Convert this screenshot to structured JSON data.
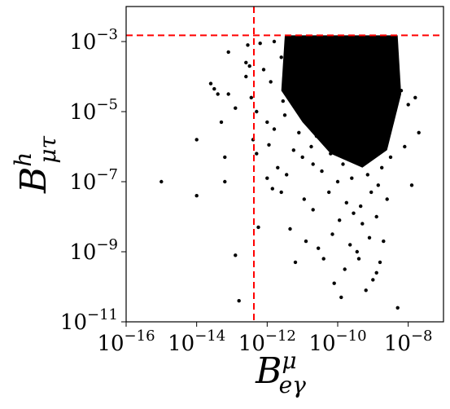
{
  "chart_data": {
    "type": "scatter",
    "title": "",
    "xscale": "log",
    "yscale": "log",
    "xlim": [
      1e-16,
      1e-07
    ],
    "ylim": [
      1e-11,
      0.01
    ],
    "xlabel": {
      "base": "B",
      "sup": "μ",
      "sub": "eγ"
    },
    "ylabel": {
      "base": "B",
      "sup": "h",
      "sub": "μτ"
    },
    "x_ticks": [
      {
        "value": 1e-16,
        "base": "10",
        "exp": "−16"
      },
      {
        "value": 1e-14,
        "base": "10",
        "exp": "−14"
      },
      {
        "value": 1e-12,
        "base": "10",
        "exp": "−12"
      },
      {
        "value": 1e-10,
        "base": "10",
        "exp": "−10"
      },
      {
        "value": 1e-08,
        "base": "10",
        "exp": "−8"
      }
    ],
    "y_ticks": [
      {
        "value": 1e-11,
        "base": "10",
        "exp": "−11"
      },
      {
        "value": 1e-09,
        "base": "10",
        "exp": "−9"
      },
      {
        "value": 1e-07,
        "base": "10",
        "exp": "−7"
      },
      {
        "value": 1e-05,
        "base": "10",
        "exp": "−5"
      },
      {
        "value": 0.001,
        "base": "10",
        "exp": "−3"
      }
    ],
    "reference_lines": [
      {
        "orientation": "vertical",
        "value": 4.2e-13,
        "color": "#ff0000",
        "style": "dashed"
      },
      {
        "orientation": "horizontal",
        "value": 0.0015,
        "color": "#ff0000",
        "style": "dashed"
      }
    ],
    "marker_color": "#000000",
    "grid": false,
    "points_log10": [
      [
        -15.0,
        -7.0
      ],
      [
        -14.0,
        -7.4
      ],
      [
        -14.0,
        -5.8
      ],
      [
        -13.6,
        -4.2
      ],
      [
        -13.5,
        -4.35
      ],
      [
        -13.4,
        -4.5
      ],
      [
        -13.3,
        -5.3
      ],
      [
        -13.2,
        -6.3
      ],
      [
        -13.2,
        -7.0
      ],
      [
        -13.1,
        -4.5
      ],
      [
        -13.1,
        -3.3
      ],
      [
        -12.9,
        -4.9
      ],
      [
        -12.9,
        -9.1
      ],
      [
        -12.8,
        -10.4
      ],
      [
        -12.6,
        -3.6
      ],
      [
        -12.55,
        -3.1
      ],
      [
        -12.5,
        -3.7
      ],
      [
        -12.45,
        -4.6
      ],
      [
        -12.4,
        -5.8
      ],
      [
        -12.3,
        -6.2
      ],
      [
        -12.25,
        -8.3
      ],
      [
        -12.2,
        -3.05
      ],
      [
        -12.1,
        -3.8
      ],
      [
        -12.0,
        -5.3
      ],
      [
        -11.95,
        -5.95
      ],
      [
        -11.9,
        -4.15
      ],
      [
        -11.85,
        -7.2
      ],
      [
        -11.8,
        -5.5
      ],
      [
        -11.7,
        -6.6
      ],
      [
        -11.6,
        -3.45
      ],
      [
        -11.55,
        -4.7
      ],
      [
        -11.5,
        -5.1
      ],
      [
        -11.45,
        -6.8
      ],
      [
        -11.4,
        -3.2
      ],
      [
        -11.35,
        -8.35
      ],
      [
        -11.3,
        -4.2
      ],
      [
        -11.25,
        -6.1
      ],
      [
        -11.2,
        -4.8
      ],
      [
        -11.1,
        -5.6
      ],
      [
        -11.05,
        -3.9
      ],
      [
        -11.0,
        -6.3
      ],
      [
        -10.95,
        -7.5
      ],
      [
        -10.9,
        -4.4
      ],
      [
        -10.85,
        -5.2
      ],
      [
        -10.8,
        -3.3
      ],
      [
        -10.75,
        -6.0
      ],
      [
        -10.7,
        -7.8
      ],
      [
        -10.65,
        -4.9
      ],
      [
        -10.6,
        -5.7
      ],
      [
        -10.55,
        -8.9
      ],
      [
        -10.5,
        -3.6
      ],
      [
        -10.45,
        -6.7
      ],
      [
        -10.4,
        -9.2
      ],
      [
        -10.35,
        -5.4
      ],
      [
        -10.3,
        -4.3
      ],
      [
        -10.25,
        -7.3
      ],
      [
        -10.2,
        -6.2
      ],
      [
        -10.15,
        -8.5
      ],
      [
        -10.1,
        -9.9
      ],
      [
        -10.05,
        -5.9
      ],
      [
        -10.0,
        -7.0
      ],
      [
        -9.95,
        -8.1
      ],
      [
        -9.9,
        -4.6
      ],
      [
        -9.85,
        -6.5
      ],
      [
        -9.8,
        -9.5
      ],
      [
        -9.75,
        -7.6
      ],
      [
        -9.7,
        -5.3
      ],
      [
        -9.65,
        -8.8
      ],
      [
        -9.6,
        -6.9
      ],
      [
        -9.55,
        -7.9
      ],
      [
        -9.5,
        -4.0
      ],
      [
        -9.45,
        -9.0
      ],
      [
        -9.4,
        -6.4
      ],
      [
        -9.35,
        -7.7
      ],
      [
        -9.3,
        -8.2
      ],
      [
        -9.25,
        -5.8
      ],
      [
        -9.2,
        -10.1
      ],
      [
        -9.15,
        -6.8
      ],
      [
        -9.1,
        -8.6
      ],
      [
        -9.05,
        -7.3
      ],
      [
        -9.0,
        -9.8
      ],
      [
        -8.95,
        -6.1
      ],
      [
        -8.9,
        -8.0
      ],
      [
        -8.85,
        -7.1
      ],
      [
        -8.8,
        -9.3
      ],
      [
        -8.75,
        -6.6
      ],
      [
        -8.7,
        -8.7
      ],
      [
        -8.65,
        -5.6
      ],
      [
        -8.6,
        -7.5
      ],
      [
        -8.5,
        -6.3
      ],
      [
        -8.4,
        -5.0
      ],
      [
        -8.3,
        -10.6
      ],
      [
        -8.2,
        -4.4
      ],
      [
        -8.1,
        -6.0
      ],
      [
        -8.0,
        -4.8
      ],
      [
        -7.9,
        -7.1
      ],
      [
        -7.8,
        -4.6
      ],
      [
        -7.7,
        -5.6
      ],
      [
        -12.6,
        -4.0
      ],
      [
        -12.0,
        -6.9
      ],
      [
        -11.2,
        -9.3
      ],
      [
        -10.9,
        -8.7
      ],
      [
        -11.6,
        -7.3
      ],
      [
        -12.3,
        -5.0
      ],
      [
        -9.9,
        -10.3
      ],
      [
        -8.9,
        -9.6
      ],
      [
        -9.4,
        -9.2
      ],
      [
        -10.7,
        -6.5
      ],
      [
        -11.8,
        -3.0
      ],
      [
        -10.2,
        -3.1
      ]
    ]
  }
}
